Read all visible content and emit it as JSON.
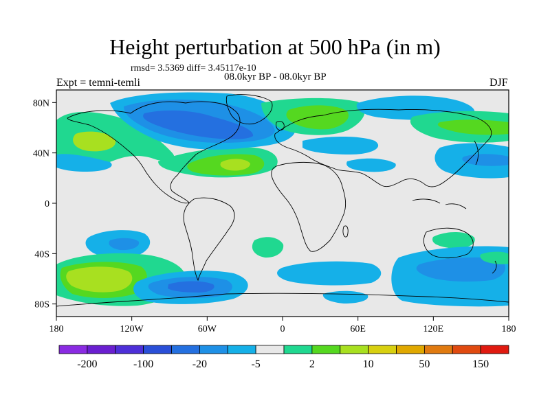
{
  "title": "Height perturbation at 500 hPa (in m)",
  "stats_line": "rmsd= 3.5369 diff= 3.45117e-10",
  "period": "08.0kyr BP - 08.0kyr BP",
  "experiment": "Expt = temni-temli",
  "season": "DJF",
  "map": {
    "lat_ticks": [
      "80N",
      "40N",
      "0",
      "40S",
      "80S"
    ],
    "lon_ticks": [
      "180",
      "120W",
      "60W",
      "0",
      "60E",
      "120E",
      "180"
    ],
    "background_color": "#e8e8e8"
  },
  "colorbar": {
    "colors": [
      "#8a2be2",
      "#6a1fd0",
      "#4d2fd8",
      "#2a4fd8",
      "#2470e0",
      "#1e90e6",
      "#15b0e8",
      "#e8e8e8",
      "#20d890",
      "#55d820",
      "#a8e020",
      "#d8d010",
      "#e0a800",
      "#e07a10",
      "#e04a10",
      "#e01a10"
    ],
    "labels": [
      "-200",
      "-100",
      "-20",
      "-5",
      "2",
      "10",
      "50",
      "150"
    ]
  },
  "contours": {
    "color_blue_light": "#15b0e8",
    "color_blue_mid": "#1e90e6",
    "color_blue_dark": "#2470e0",
    "color_green": "#20d890",
    "color_green_bright": "#55d820",
    "color_yellow_green": "#a8e020"
  }
}
